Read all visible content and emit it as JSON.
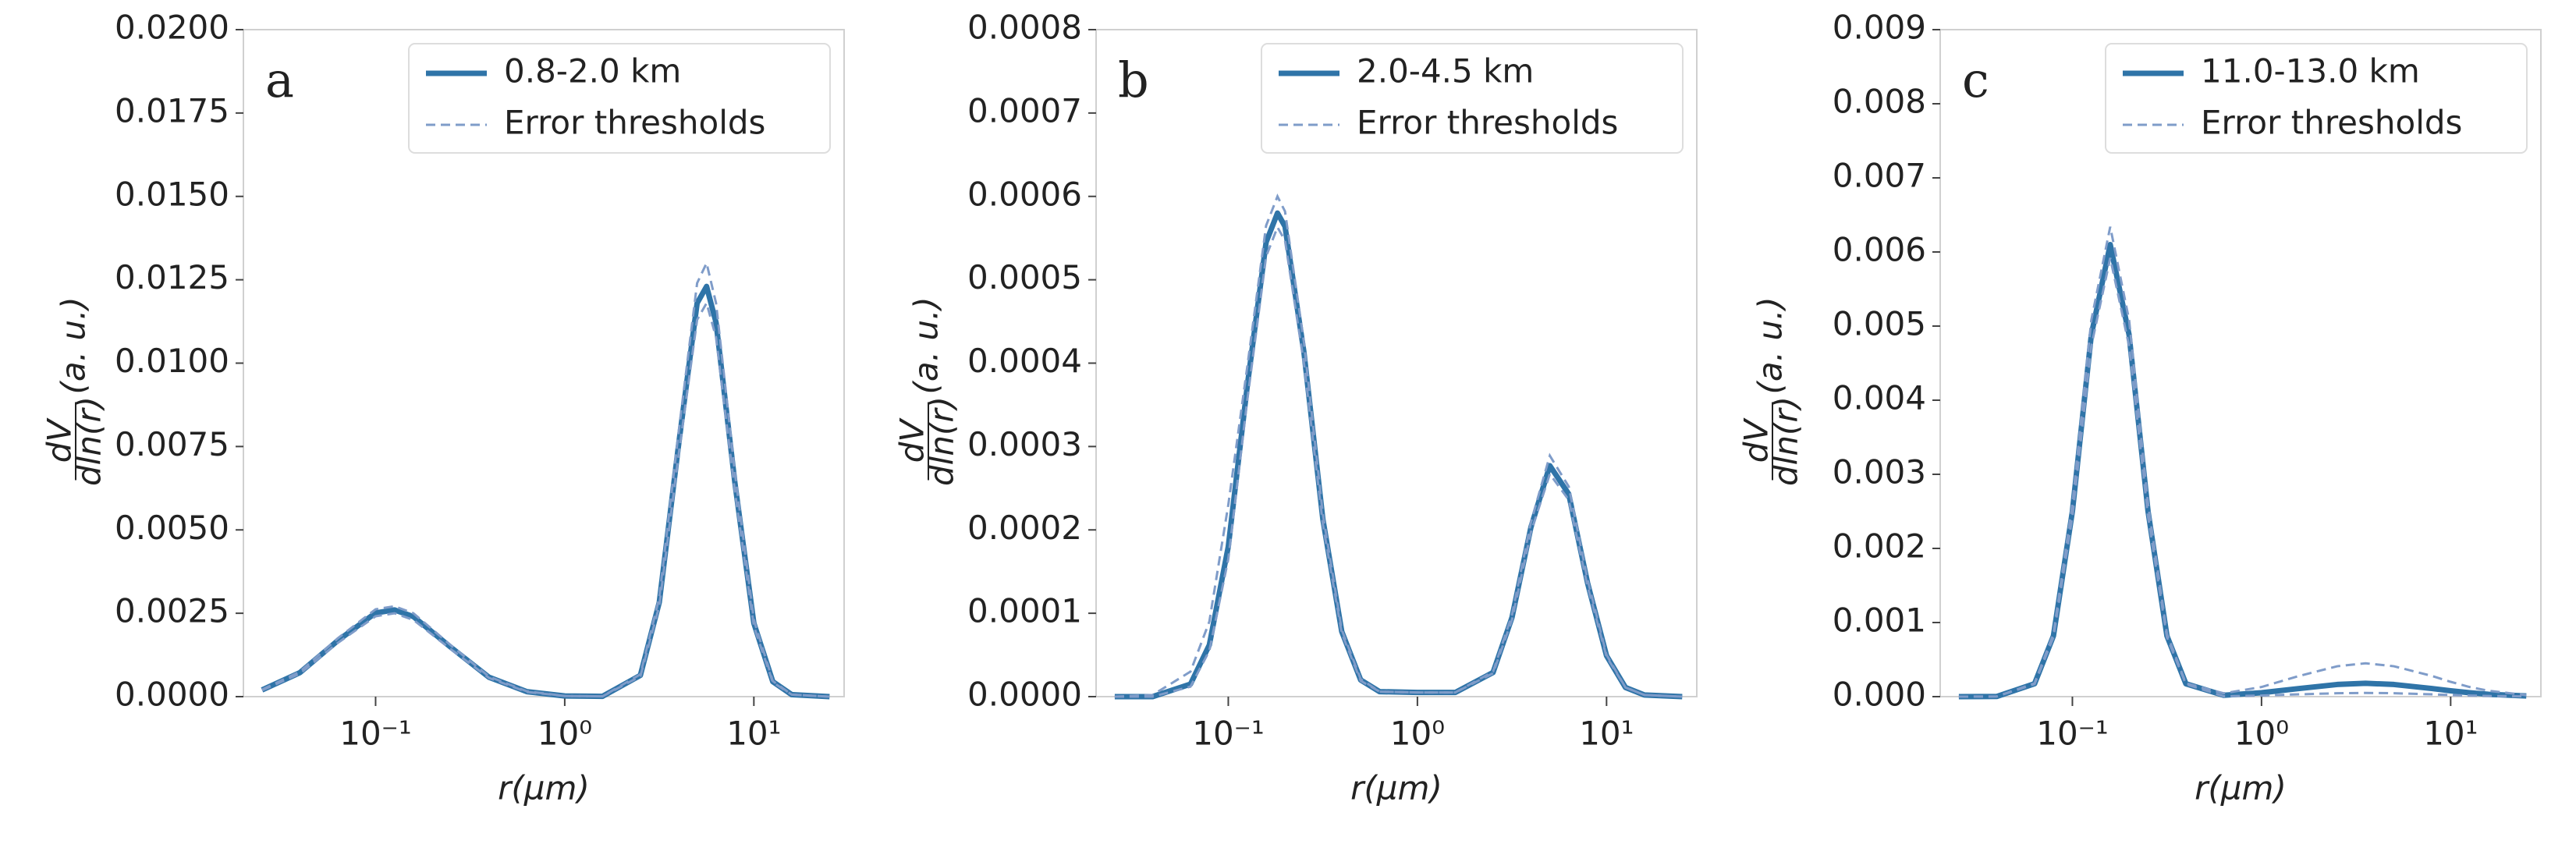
{
  "chart_data": [
    {
      "type": "line",
      "annotation": "a",
      "xlabel": "r(μm)",
      "ylabel_numerator": "dV",
      "ylabel_denominator": "dln(r)",
      "ylabel_unit": "(a. u.)",
      "xscale": "log",
      "xlim": [
        0.02,
        30
      ],
      "xticks": [
        {
          "value": 0.1,
          "label": "10⁻¹"
        },
        {
          "value": 1,
          "label": "10⁰"
        },
        {
          "value": 10,
          "label": "10¹"
        }
      ],
      "ylim": [
        0,
        0.02
      ],
      "yticks": [
        {
          "value": 0,
          "label": "0.0000"
        },
        {
          "value": 0.0025,
          "label": "0.0025"
        },
        {
          "value": 0.005,
          "label": "0.0050"
        },
        {
          "value": 0.0075,
          "label": "0.0075"
        },
        {
          "value": 0.01,
          "label": "0.0100"
        },
        {
          "value": 0.0125,
          "label": "0.0125"
        },
        {
          "value": 0.015,
          "label": "0.0150"
        },
        {
          "value": 0.0175,
          "label": "0.0175"
        },
        {
          "value": 0.02,
          "label": "0.0200"
        }
      ],
      "legend": "upper right",
      "x": [
        0.0251,
        0.0398,
        0.0631,
        0.1,
        0.1259,
        0.1585,
        0.2512,
        0.3981,
        0.631,
        1,
        1.585,
        2.512,
        3.162,
        3.981,
        5.012,
        5.623,
        6.31,
        7.943,
        10,
        12.59,
        15.85,
        25.12
      ],
      "series": [
        {
          "name": "0.8-2.0 km",
          "color": "#2f74a8",
          "values": [
            0.0002,
            0.00072,
            0.00168,
            0.00251,
            0.0026,
            0.0024,
            0.00147,
            0.00058,
            0.00015,
            2e-05,
            1e-05,
            0.00064,
            0.00283,
            0.00746,
            0.0118,
            0.0123,
            0.01122,
            0.0064,
            0.0022,
            0.00045,
            6e-05,
            0
          ]
        },
        {
          "name": "Error thresholds",
          "color": "#7f9cc9",
          "upper": [
            0.00021,
            0.00075,
            0.00175,
            0.00262,
            0.00271,
            0.0025,
            0.00153,
            0.0006,
            0.00016,
            2e-05,
            1e-05,
            0.00067,
            0.00297,
            0.00783,
            0.0124,
            0.013,
            0.0118,
            0.0067,
            0.0023,
            0.00047,
            6e-05,
            0
          ],
          "lower": [
            0.00019,
            0.00069,
            0.00161,
            0.00241,
            0.0025,
            0.0023,
            0.00141,
            0.00056,
            0.00014,
            2e-05,
            1e-05,
            0.00061,
            0.00272,
            0.00716,
            0.0113,
            0.0118,
            0.01077,
            0.00614,
            0.00211,
            0.00043,
            6e-05,
            0
          ]
        }
      ]
    },
    {
      "type": "line",
      "annotation": "b",
      "xlabel": "r(μm)",
      "ylabel_numerator": "dV",
      "ylabel_denominator": "dln(r)",
      "ylabel_unit": "(a. u.)",
      "xscale": "log",
      "xlim": [
        0.02,
        30
      ],
      "xticks": [
        {
          "value": 0.1,
          "label": "10⁻¹"
        },
        {
          "value": 1,
          "label": "10⁰"
        },
        {
          "value": 10,
          "label": "10¹"
        }
      ],
      "ylim": [
        0,
        0.0008
      ],
      "yticks": [
        {
          "value": 0,
          "label": "0.0000"
        },
        {
          "value": 0.0001,
          "label": "0.0001"
        },
        {
          "value": 0.0002,
          "label": "0.0002"
        },
        {
          "value": 0.0003,
          "label": "0.0003"
        },
        {
          "value": 0.0004,
          "label": "0.0004"
        },
        {
          "value": 0.0005,
          "label": "0.0005"
        },
        {
          "value": 0.0006,
          "label": "0.0006"
        },
        {
          "value": 0.0007,
          "label": "0.0007"
        },
        {
          "value": 0.0008,
          "label": "0.0008"
        }
      ],
      "legend": "upper right",
      "x": [
        0.0251,
        0.0398,
        0.0631,
        0.0794,
        0.1,
        0.1259,
        0.1585,
        0.182,
        0.1995,
        0.2512,
        0.3162,
        0.3981,
        0.5012,
        0.631,
        1,
        1.585,
        2.512,
        3.162,
        3.981,
        5.012,
        6.31,
        7.943,
        10,
        12.59,
        15.85,
        25.12
      ],
      "series": [
        {
          "name": "2.0-4.5 km",
          "color": "#2f74a8",
          "values": [
            0,
            0,
            1.5e-05,
            6.2e-05,
            0.00018,
            0.000372,
            0.000545,
            0.00058,
            0.000564,
            0.000413,
            0.000213,
            7.8e-05,
            2e-05,
            6e-06,
            5e-06,
            5e-06,
            2.9e-05,
            9.5e-05,
            0.000203,
            0.000277,
            0.000243,
            0.000136,
            4.9e-05,
            1.1e-05,
            2e-06,
            0
          ]
        },
        {
          "name": "Error thresholds",
          "color": "#7f9cc9",
          "upper": [
            0,
            2e-06,
            3e-05,
            9e-05,
            0.00023,
            0.000395,
            0.000565,
            0.0006,
            0.000582,
            0.000425,
            0.000219,
            8e-05,
            2.1e-05,
            6e-06,
            5e-06,
            5e-06,
            3e-05,
            9.8e-05,
            0.000209,
            0.000289,
            0.000252,
            0.00014,
            5e-05,
            1.1e-05,
            2e-06,
            0
          ],
          "lower": [
            0,
            0,
            1.2e-05,
            5.5e-05,
            0.000165,
            0.000355,
            0.000528,
            0.000563,
            0.000547,
            0.0004,
            0.000207,
            7.6e-05,
            1.9e-05,
            6e-06,
            5e-06,
            5e-06,
            2.8e-05,
            9.2e-05,
            0.000197,
            0.000267,
            0.000236,
            0.000132,
            4.8e-05,
            1.1e-05,
            2e-06,
            0
          ]
        }
      ]
    },
    {
      "type": "line",
      "annotation": "c",
      "xlabel": "r(μm)",
      "ylabel_numerator": "dV",
      "ylabel_denominator": "dln(r)",
      "ylabel_unit": "(a. u.)",
      "xscale": "log",
      "xlim": [
        0.02,
        30
      ],
      "xticks": [
        {
          "value": 0.1,
          "label": "10⁻¹"
        },
        {
          "value": 1,
          "label": "10⁰"
        },
        {
          "value": 10,
          "label": "10¹"
        }
      ],
      "ylim": [
        0,
        0.009
      ],
      "yticks": [
        {
          "value": 0,
          "label": "0.000"
        },
        {
          "value": 0.001,
          "label": "0.001"
        },
        {
          "value": 0.002,
          "label": "0.002"
        },
        {
          "value": 0.003,
          "label": "0.003"
        },
        {
          "value": 0.004,
          "label": "0.004"
        },
        {
          "value": 0.005,
          "label": "0.005"
        },
        {
          "value": 0.006,
          "label": "0.006"
        },
        {
          "value": 0.007,
          "label": "0.007"
        },
        {
          "value": 0.008,
          "label": "0.008"
        },
        {
          "value": 0.009,
          "label": "0.009"
        }
      ],
      "legend": "upper right",
      "x": [
        0.0251,
        0.0398,
        0.0631,
        0.0794,
        0.1,
        0.1259,
        0.1585,
        0.1995,
        0.2512,
        0.3162,
        0.3981,
        0.631,
        1,
        1.585,
        2.512,
        3.548,
        5.012,
        7.943,
        10,
        12.59,
        15.85,
        25.12
      ],
      "series": [
        {
          "name": "11.0-13.0 km",
          "color": "#2f74a8",
          "values": [
            0,
            2e-06,
            0.000174,
            0.00082,
            0.0025,
            0.00488,
            0.0061,
            0.00488,
            0.0025,
            0.00082,
            0.000174,
            1.8e-05,
            5.3e-05,
            0.00011,
            0.000164,
            0.00018,
            0.000164,
            0.00011,
            7.9e-05,
            5.3e-05,
            3.2e-05,
            9e-06
          ]
        },
        {
          "name": "Error thresholds",
          "color": "#7f9cc9",
          "upper": [
            0,
            2e-06,
            0.00018,
            0.00085,
            0.0026,
            0.00508,
            0.00634,
            0.00508,
            0.0026,
            0.00085,
            0.00018,
            4.5e-05,
            0.00013,
            0.00028,
            0.00041,
            0.00045,
            0.00041,
            0.00028,
            0.0002,
            0.00013,
            8e-05,
            2e-05
          ],
          "lower": [
            0,
            2e-06,
            0.000169,
            0.0008,
            0.00243,
            0.00473,
            0.00592,
            0.00473,
            0.00243,
            0.0008,
            0.000169,
            5e-06,
            1.5e-05,
            3.1e-05,
            4.6e-05,
            5e-05,
            4.6e-05,
            3.1e-05,
            2.2e-05,
            1.5e-05,
            9e-06,
            3e-06
          ]
        }
      ]
    }
  ]
}
